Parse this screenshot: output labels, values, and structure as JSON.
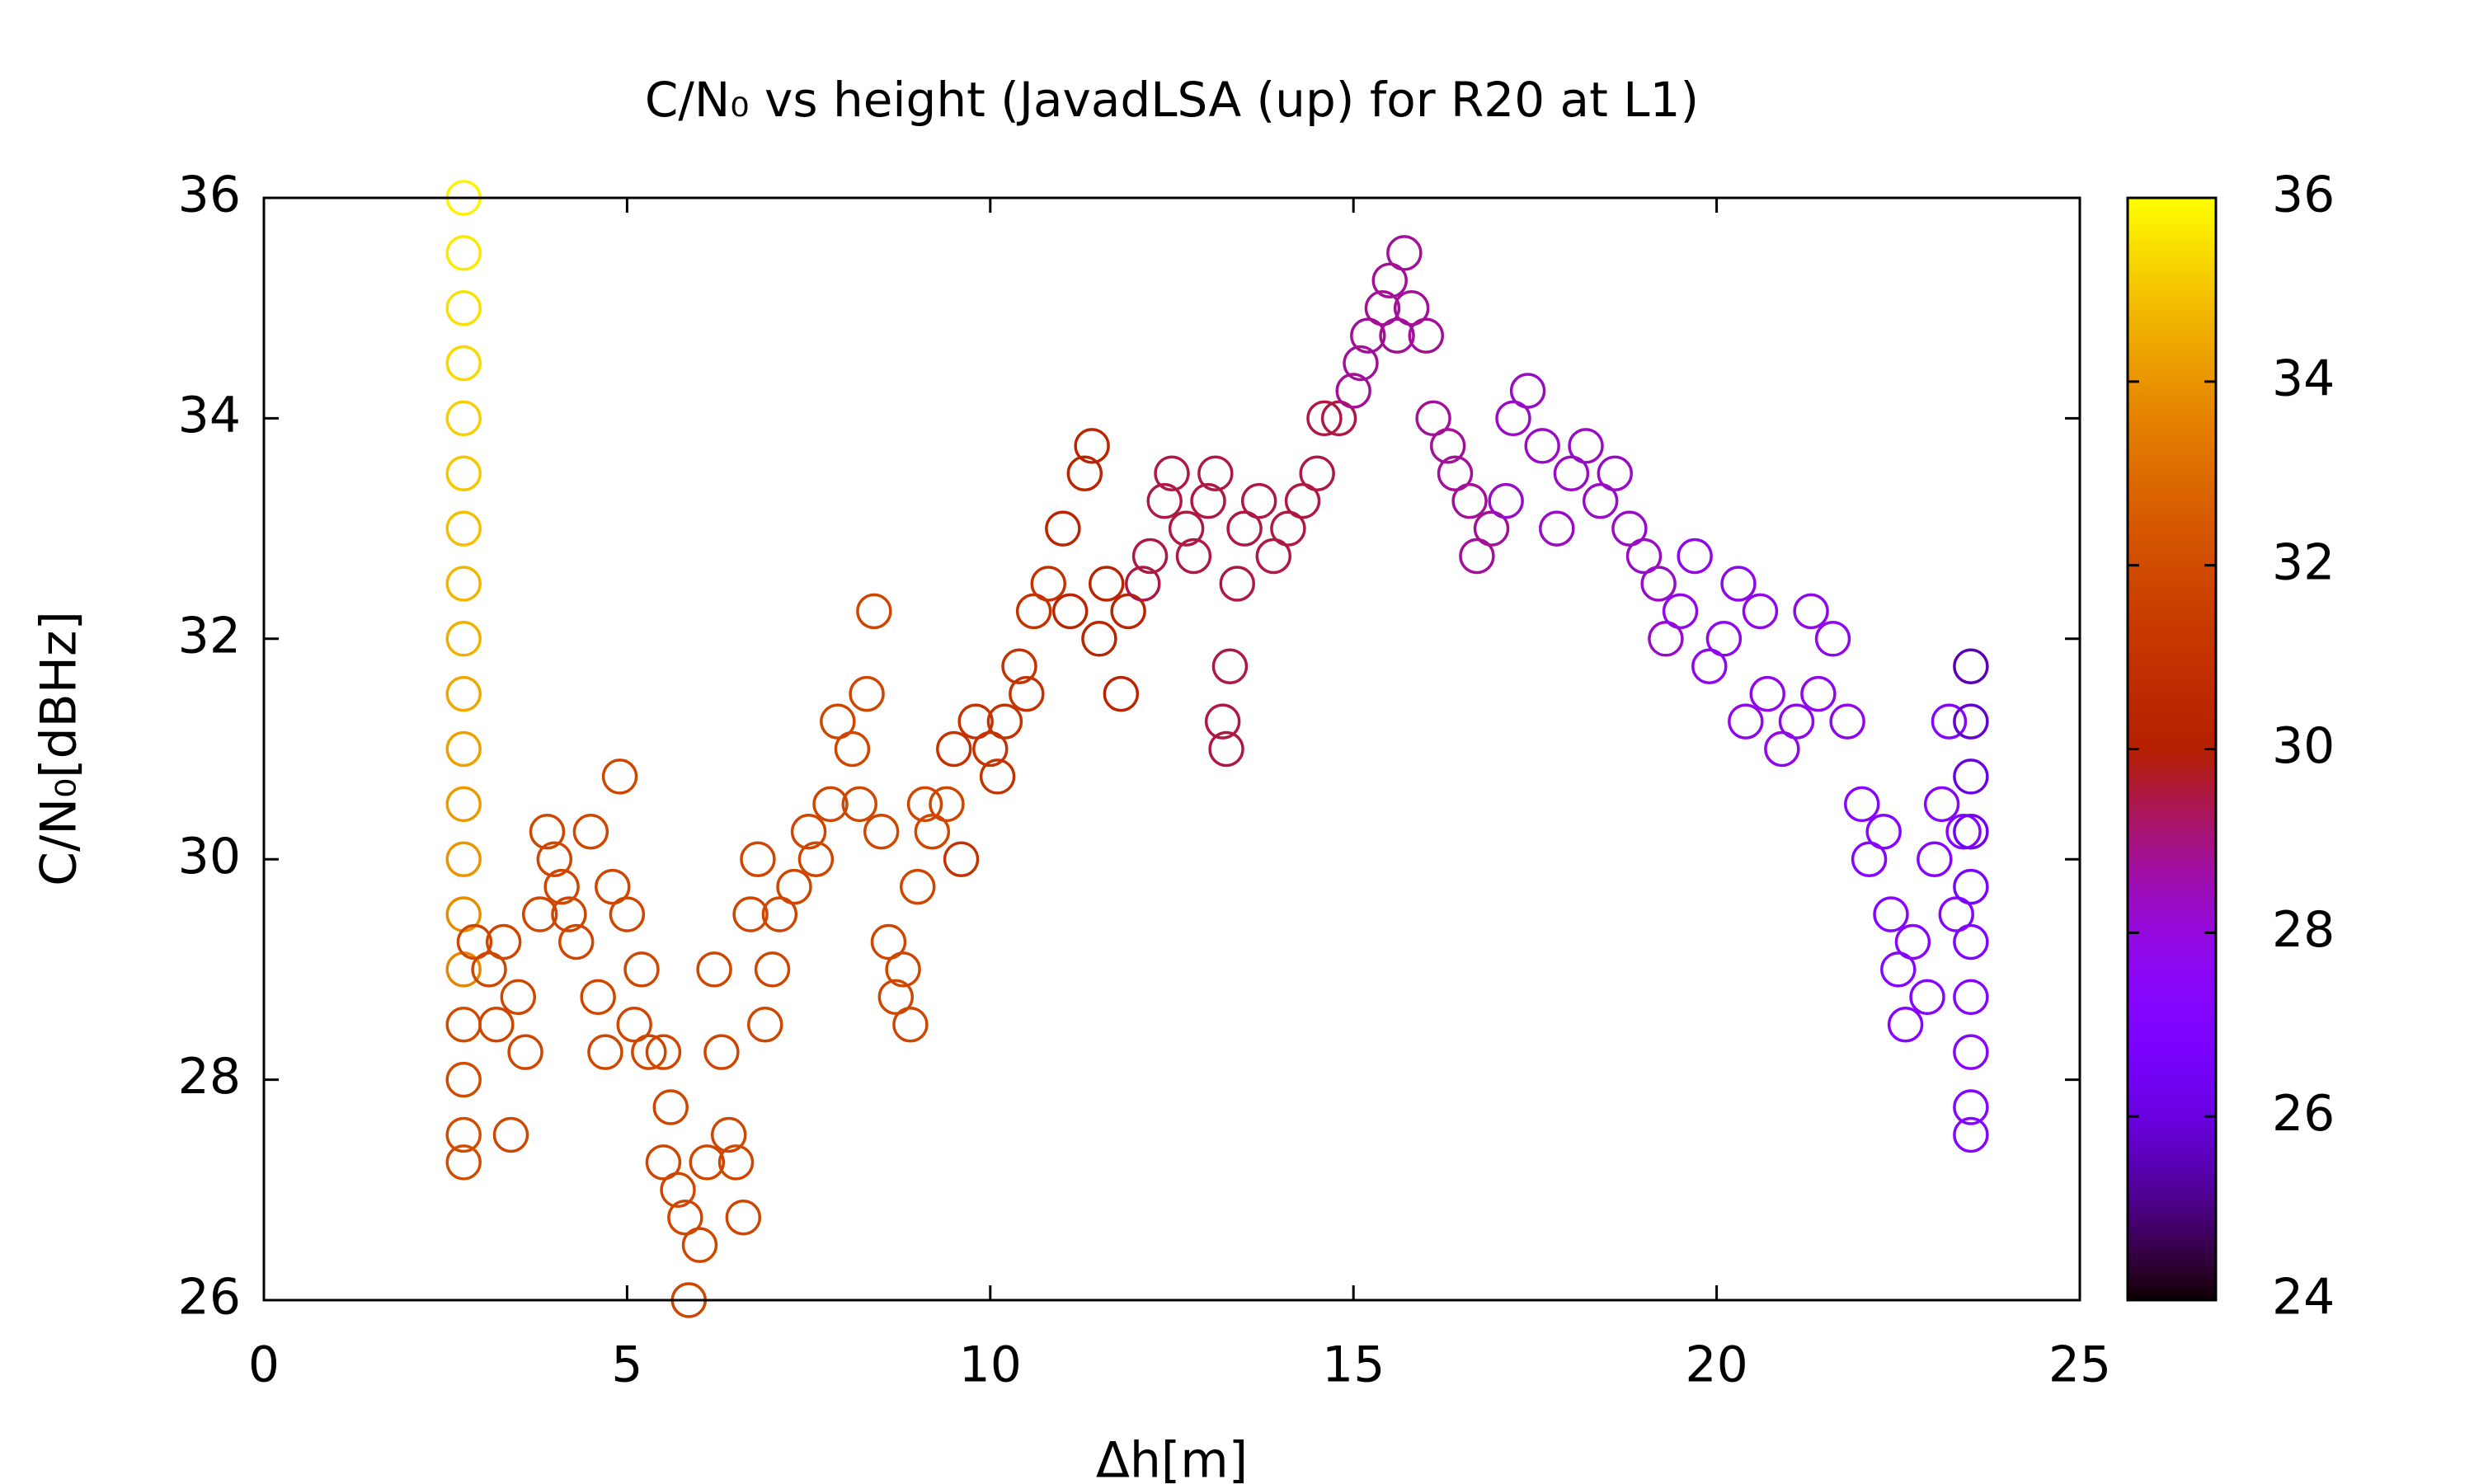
{
  "chart_data": {
    "type": "scatter",
    "title": "C/N₀ vs height (JavadLSA (up) for R20 at L1)",
    "x_label": "Δh[m]",
    "y_label": "C/N₀[dBHz]",
    "xlim": [
      0,
      25
    ],
    "xticks": [
      0,
      5,
      10,
      15,
      20,
      25
    ],
    "ylim": [
      26,
      36
    ],
    "yticks": [
      26,
      28,
      30,
      32,
      34,
      36
    ],
    "cblim": [
      24,
      36
    ],
    "cbticks": [
      24,
      26,
      28,
      30,
      32,
      34,
      36
    ],
    "colormap": "gnuplot",
    "marker": "open-circle",
    "x": [
      2.75,
      2.75,
      2.75,
      2.75,
      2.75,
      2.75,
      2.75,
      2.75,
      2.75,
      2.75,
      2.75,
      2.75,
      2.75,
      2.75,
      2.75,
      2.75,
      2.75,
      2.75,
      2.75,
      2.9,
      3.1,
      3.2,
      3.3,
      3.4,
      3.5,
      3.6,
      3.8,
      3.9,
      4.0,
      4.1,
      4.2,
      4.3,
      4.5,
      4.6,
      4.7,
      4.8,
      4.9,
      5.0,
      5.1,
      5.2,
      5.3,
      5.5,
      5.5,
      5.6,
      5.7,
      5.8,
      5.85,
      6.0,
      6.1,
      6.2,
      6.3,
      6.4,
      6.5,
      6.6,
      6.7,
      6.8,
      6.9,
      7.0,
      7.1,
      7.3,
      7.5,
      7.6,
      7.8,
      7.9,
      8.1,
      8.2,
      8.3,
      8.4,
      8.5,
      8.6,
      8.7,
      8.8,
      8.9,
      9.0,
      9.1,
      9.2,
      9.4,
      9.5,
      9.6,
      9.8,
      10.0,
      10.1,
      10.2,
      10.4,
      10.5,
      10.6,
      10.8,
      11.0,
      11.1,
      11.3,
      11.4,
      11.5,
      11.6,
      11.8,
      11.9,
      12.1,
      12.2,
      12.4,
      12.5,
      12.7,
      12.8,
      13.0,
      13.1,
      13.2,
      13.25,
      13.3,
      13.4,
      13.5,
      13.7,
      13.9,
      14.1,
      14.3,
      14.5,
      14.6,
      14.8,
      15.0,
      15.1,
      15.2,
      15.4,
      15.5,
      15.6,
      15.7,
      15.8,
      16.0,
      16.1,
      16.3,
      16.4,
      16.6,
      16.7,
      16.9,
      17.1,
      17.2,
      17.4,
      17.6,
      17.8,
      18.0,
      18.2,
      18.4,
      18.6,
      18.8,
      19.0,
      19.2,
      19.3,
      19.5,
      19.7,
      19.9,
      20.1,
      20.3,
      20.4,
      20.6,
      20.7,
      20.9,
      21.1,
      21.3,
      21.4,
      21.6,
      21.8,
      22.0,
      22.1,
      22.3,
      22.4,
      22.5,
      22.6,
      22.7,
      22.9,
      23.0,
      23.1,
      23.2,
      23.3,
      23.4,
      23.5,
      23.5,
      23.5,
      23.5,
      23.5,
      23.5,
      23.5,
      23.5,
      23.5,
      23.5
    ],
    "values": [
      36,
      35.5,
      35,
      34.5,
      34,
      33.5,
      33,
      32.5,
      32,
      31.5,
      31,
      30.5,
      30,
      29.5,
      29,
      28.5,
      28,
      27.5,
      27.25,
      29.25,
      29,
      28.5,
      29.25,
      27.5,
      28.75,
      28.25,
      29.5,
      30.25,
      30,
      29.75,
      29.5,
      29.25,
      30.25,
      28.75,
      28.25,
      29.75,
      30.75,
      29.5,
      28.5,
      29,
      28.25,
      28.25,
      27.25,
      27.75,
      27,
      26.75,
      26,
      26.5,
      27.25,
      29,
      28.25,
      27.5,
      27.25,
      26.75,
      29.5,
      30,
      28.5,
      29,
      29.5,
      29.75,
      30.25,
      30,
      30.5,
      31.25,
      31,
      30.5,
      31.5,
      32.25,
      30.25,
      29.25,
      28.75,
      29,
      28.5,
      29.75,
      30.5,
      30.25,
      30.5,
      31,
      30,
      31.25,
      31,
      30.75,
      31.25,
      31.75,
      31.5,
      32.25,
      32.5,
      33,
      32.25,
      33.5,
      33.75,
      32,
      32.5,
      31.5,
      32.25,
      32.5,
      32.75,
      33.25,
      33.5,
      33,
      32.75,
      33.25,
      33.5,
      31.25,
      31,
      31.75,
      32.5,
      33,
      33.25,
      32.75,
      33,
      33.25,
      33.5,
      34,
      34,
      34.25,
      34.5,
      34.75,
      35,
      35.25,
      34.75,
      35.5,
      35,
      34.75,
      34,
      33.75,
      33.5,
      33.25,
      32.75,
      33,
      33.25,
      34,
      34.25,
      33.75,
      33,
      33.5,
      33.75,
      33.25,
      33.5,
      33,
      32.75,
      32.5,
      32,
      32.25,
      32.75,
      31.75,
      32,
      32.5,
      31.25,
      32.25,
      31.5,
      31,
      31.25,
      32.25,
      31.5,
      32,
      31.25,
      30.5,
      30,
      30.25,
      29.5,
      29,
      28.5,
      29.25,
      28.75,
      30,
      30.5,
      31.25,
      29.5,
      30.25,
      31.75,
      31.25,
      30.75,
      30.25,
      29.75,
      29.25,
      28.75,
      28.25,
      27.75,
      27.5
    ],
    "color_values": [
      35.8,
      35.65,
      35.5,
      35.35,
      35.2,
      35.05,
      34.9,
      34.75,
      34.6,
      34.45,
      34.3,
      34.15,
      34,
      33.85,
      33.7,
      32,
      32,
      32,
      32,
      31.8,
      31.8,
      31.8,
      31.8,
      31.8,
      31.8,
      31.8,
      31.8,
      31.8,
      31.8,
      31.8,
      31.8,
      31.8,
      31.8,
      31.8,
      31.8,
      31.8,
      31.8,
      31.8,
      31.8,
      31.8,
      31.8,
      31.8,
      31.8,
      31.8,
      31.8,
      31.8,
      31.8,
      31.8,
      31.8,
      31.8,
      31.8,
      31.8,
      31.8,
      31.8,
      31.8,
      31.8,
      31.8,
      31.8,
      31.8,
      31.8,
      31.8,
      31.8,
      31.8,
      31.8,
      31.8,
      31.8,
      31.8,
      31.8,
      31.8,
      31.8,
      31.8,
      31.8,
      31.8,
      31.8,
      31.8,
      31.8,
      31.8,
      31,
      31,
      31,
      31,
      31,
      31,
      31,
      31,
      31,
      31,
      30.3,
      30.3,
      30.3,
      30.3,
      30.3,
      30.3,
      30.3,
      30.3,
      29.5,
      29.5,
      29.5,
      29.5,
      29.5,
      29.5,
      29.5,
      29.5,
      29.5,
      29.5,
      29.5,
      29.5,
      29.5,
      29.5,
      29.5,
      29.5,
      29.5,
      29.5,
      29.5,
      29.5,
      28.8,
      28.8,
      28.8,
      28.8,
      28.8,
      28.8,
      28.8,
      28.8,
      28.8,
      28.8,
      28.8,
      28.8,
      28.8,
      28.8,
      28.8,
      28.3,
      28.3,
      28.3,
      28.3,
      28.3,
      28.3,
      28.3,
      28.3,
      28.3,
      28.3,
      28.3,
      28.3,
      28.3,
      27.8,
      27.8,
      27.8,
      27.8,
      27.8,
      27.8,
      27.8,
      27.8,
      27.8,
      27.8,
      27.8,
      27.8,
      27.8,
      27.8,
      27.3,
      27.3,
      27.3,
      27.3,
      27.3,
      27.3,
      27.3,
      27.3,
      27.3,
      27.3,
      27.3,
      27.3,
      27.3,
      25.5,
      25.8,
      26.1,
      26.4,
      26.7,
      27,
      27.2,
      27.3,
      27.3,
      27.3
    ]
  }
}
